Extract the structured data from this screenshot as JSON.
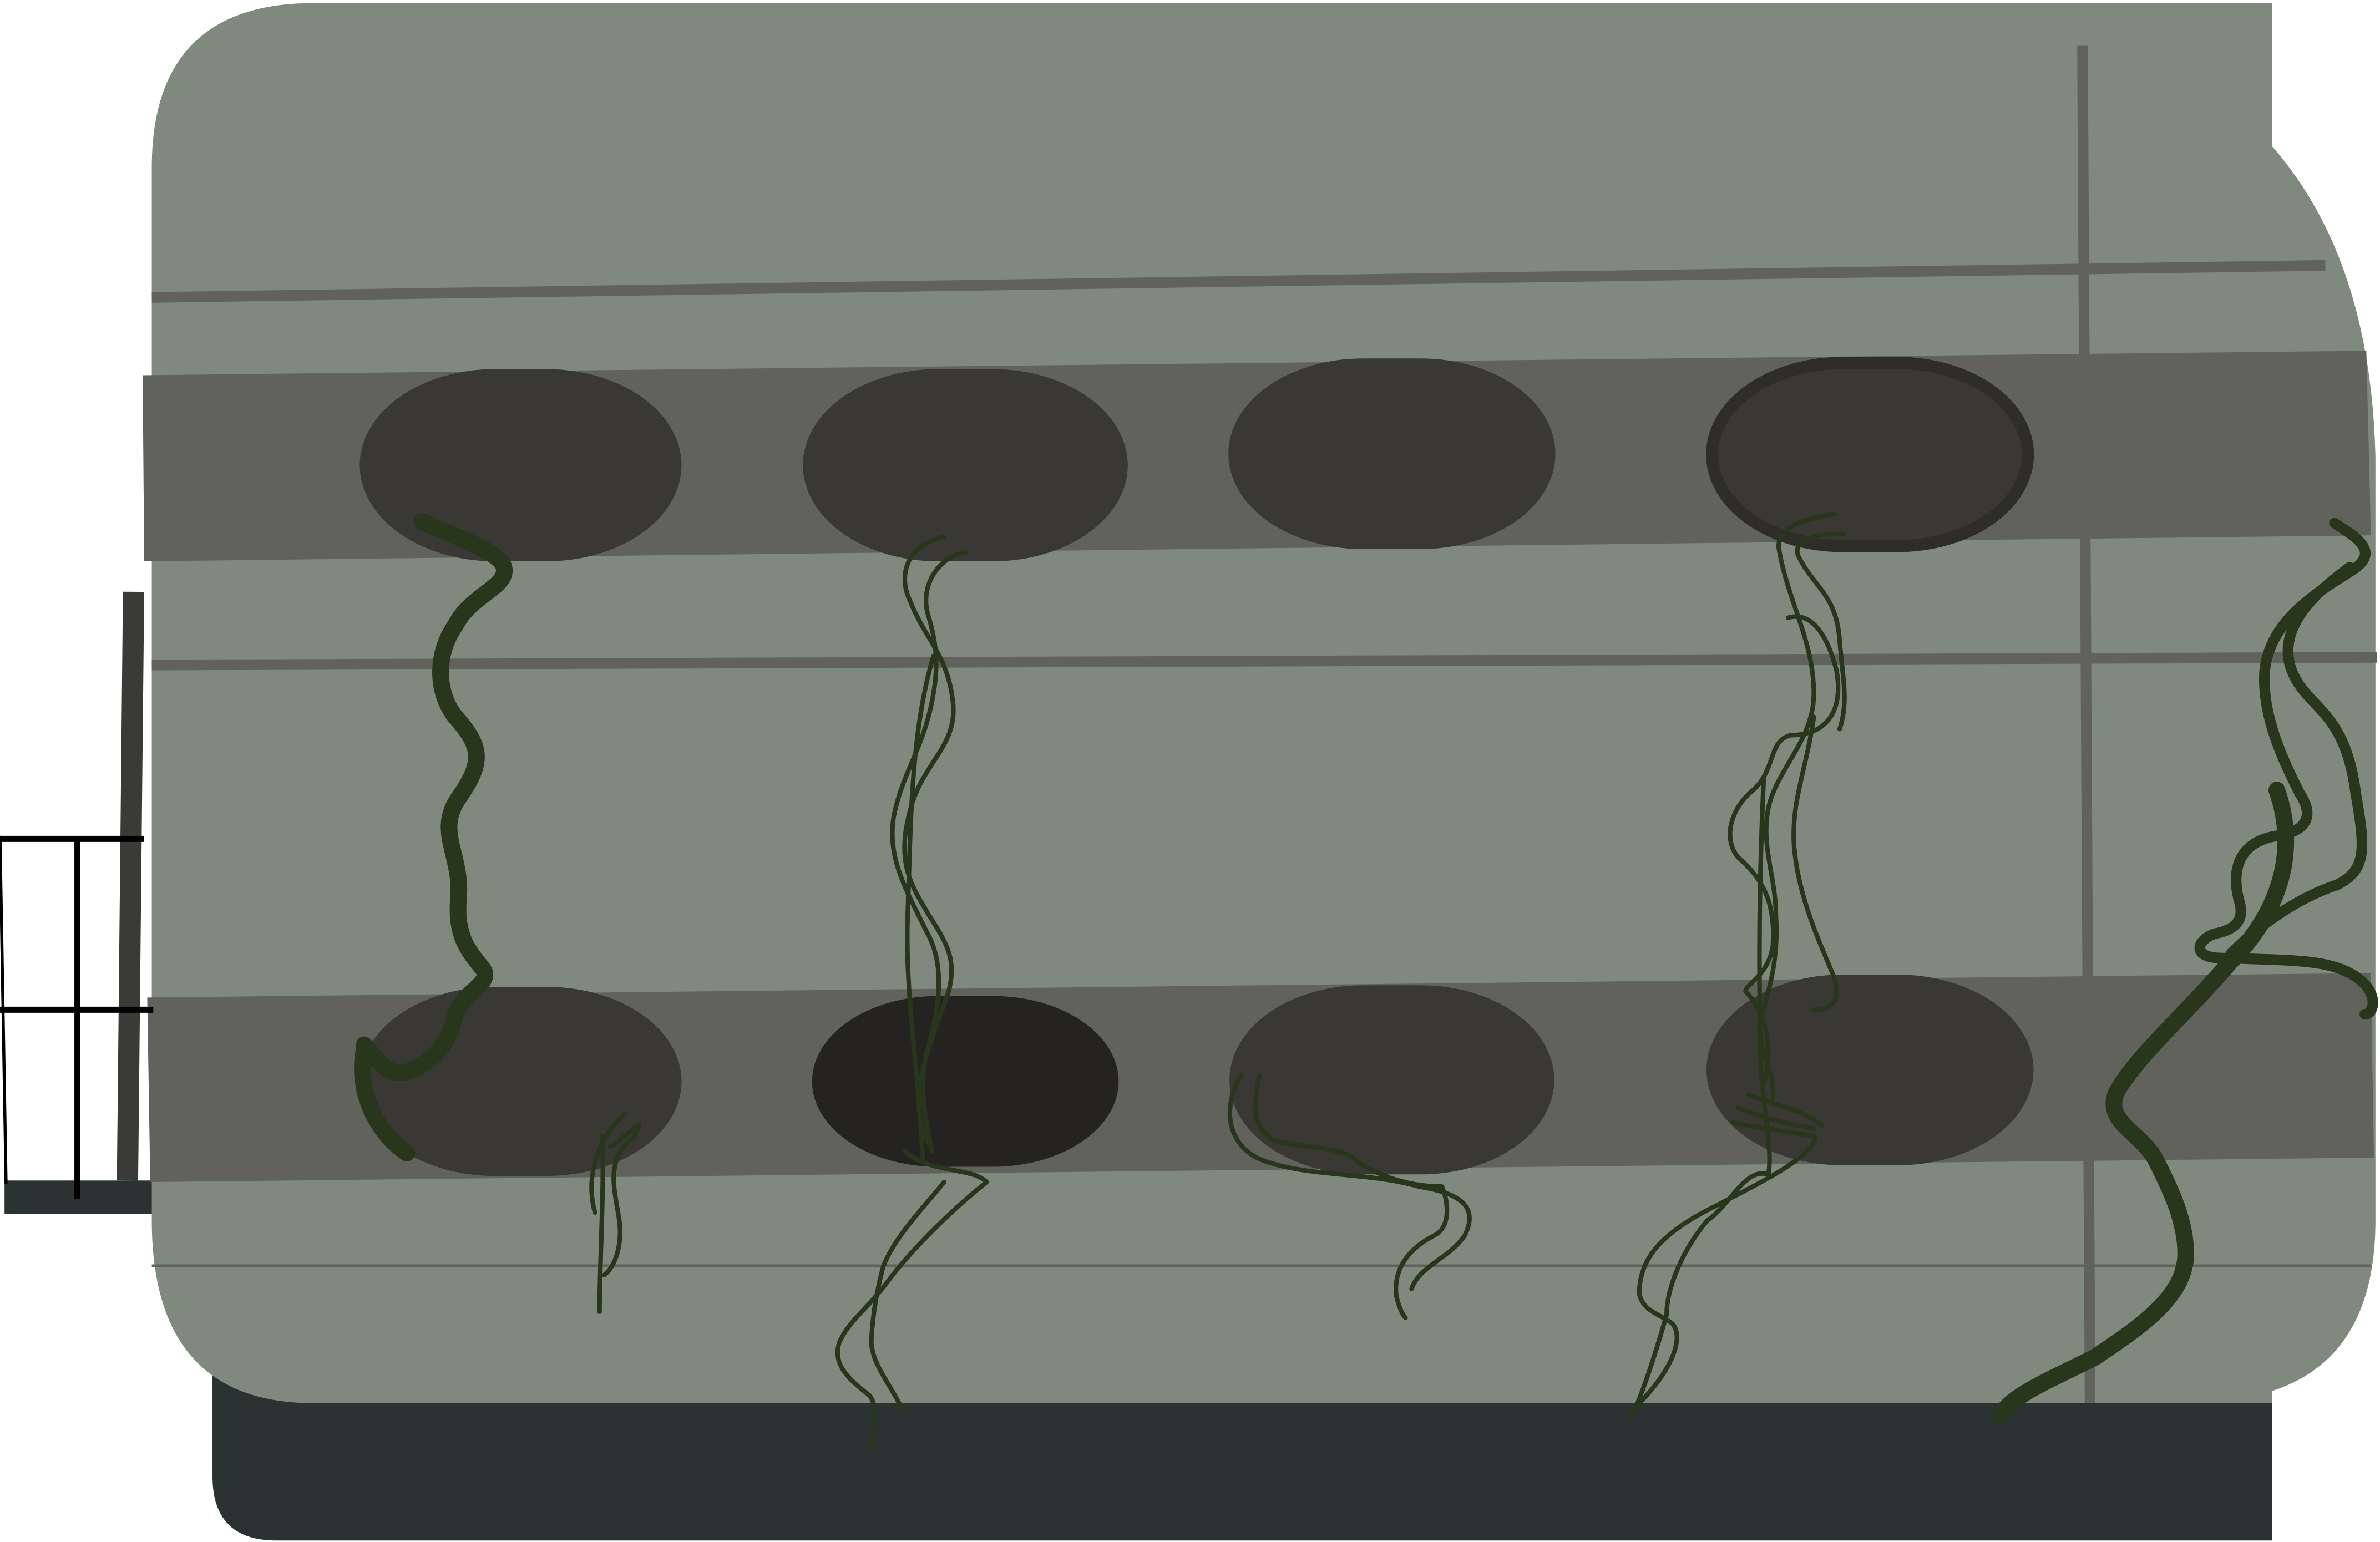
{
  "scene": {
    "subject": "overgrown-wall-with-portholes",
    "colors": {
      "background": "#ffffff",
      "wall": "#80897d",
      "band": "#61625c",
      "seam": "#61625c",
      "hole": "#393834",
      "hole_dark": "#242322",
      "hole_rim": "#2e2d2a",
      "base": "#2b3332",
      "vine": "#28361c",
      "railing": "#000000",
      "post": "#3a3b36"
    }
  }
}
